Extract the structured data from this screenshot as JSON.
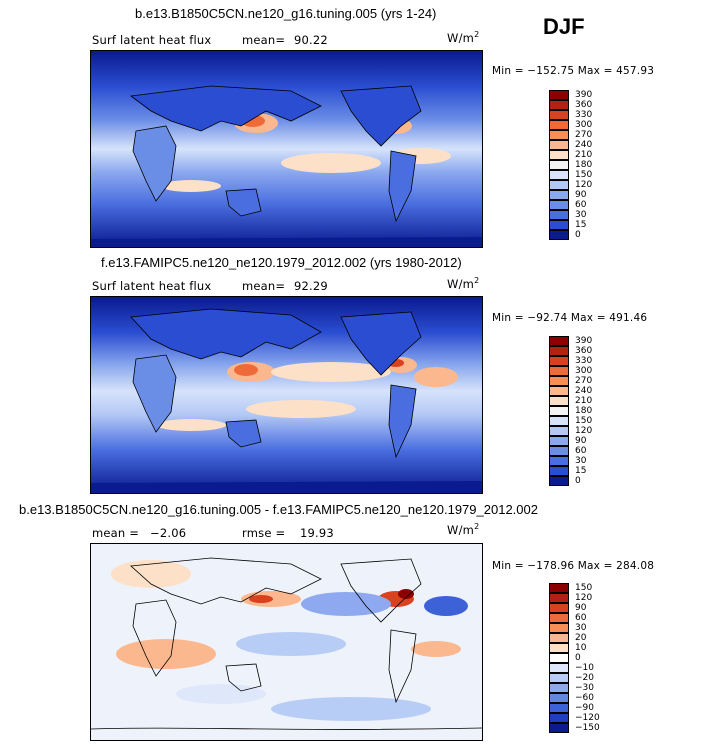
{
  "season": "DJF",
  "panels": [
    {
      "title": "b.e13.B1850C5CN.ne120_g16.tuning.005 (yrs 1-24)",
      "variable": "Surf latent heat flux",
      "stat_label": "mean=",
      "stat_value": "90.22",
      "units": "W/m",
      "units_sup": "2",
      "minmax": "Min = −152.75 Max = 457.93",
      "colorbar_levels": [
        "390",
        "360",
        "330",
        "300",
        "270",
        "240",
        "210",
        "180",
        "150",
        "120",
        "90",
        "60",
        "30",
        "15",
        "0"
      ],
      "colors": [
        "#8b0000",
        "#b22211",
        "#d9421e",
        "#ee6a38",
        "#f68e58",
        "#fbb88e",
        "#fde0c8",
        "#f4f4f4",
        "#d6e3fa",
        "#b3c8f5",
        "#8aa8ee",
        "#6a8de6",
        "#4a6ee0",
        "#2a4dd1",
        "#0a1a8f"
      ]
    },
    {
      "title": "f.e13.FAMIPC5.ne120_ne120.1979_2012.002 (yrs 1980-2012)",
      "variable": "Surf latent heat flux",
      "stat_label": "mean=",
      "stat_value": "92.29",
      "units": "W/m",
      "units_sup": "2",
      "minmax": "Min = −92.74 Max = 491.46",
      "colorbar_levels": [
        "390",
        "360",
        "330",
        "300",
        "270",
        "240",
        "210",
        "180",
        "150",
        "120",
        "90",
        "60",
        "30",
        "15",
        "0"
      ],
      "colors": [
        "#8b0000",
        "#b22211",
        "#d9421e",
        "#ee6a38",
        "#f68e58",
        "#fbb88e",
        "#fde0c8",
        "#f4f4f4",
        "#d6e3fa",
        "#b3c8f5",
        "#8aa8ee",
        "#6a8de6",
        "#4a6ee0",
        "#2a4dd1",
        "#0a1a8f"
      ]
    },
    {
      "title": "b.e13.B1850C5CN.ne120_g16.tuning.005 - f.e13.FAMIPC5.ne120_ne120.1979_2012.002",
      "stat_label": "mean =",
      "stat_value": "−2.06",
      "rmse_label": "rmse =",
      "rmse_value": "19.93",
      "units": "W/m",
      "units_sup": "2",
      "minmax": "Min = −178.96 Max = 284.08",
      "colorbar_levels": [
        "150",
        "120",
        "90",
        "60",
        "30",
        "20",
        "10",
        "0",
        "−10",
        "−20",
        "−30",
        "−60",
        "−90",
        "−120",
        "−150"
      ],
      "colors": [
        "#8b0000",
        "#b22211",
        "#d9421e",
        "#ee6a38",
        "#f68e58",
        "#fbb88e",
        "#fde0c8",
        "#ffffff",
        "#dfe8fb",
        "#b8cdf6",
        "#8ea9ef",
        "#6286e4",
        "#3d61d6",
        "#1f3fbf",
        "#0a1a8f"
      ]
    }
  ],
  "chart_data": {
    "type": "heatmap",
    "title": "DJF",
    "panels": [
      {
        "title": "b.e13.B1850C5CN.ne120_g16.tuning.005 (yrs 1-24)",
        "variable": "Surf latent heat flux",
        "mean": 90.22,
        "min": -152.75,
        "max": 457.93,
        "units": "W/m2",
        "levels": [
          0,
          15,
          30,
          60,
          90,
          120,
          150,
          180,
          210,
          240,
          270,
          300,
          330,
          360,
          390
        ]
      },
      {
        "title": "f.e13.FAMIPC5.ne120_ne120.1979_2012.002 (yrs 1980-2012)",
        "variable": "Surf latent heat flux",
        "mean": 92.29,
        "min": -92.74,
        "max": 491.46,
        "units": "W/m2",
        "levels": [
          0,
          15,
          30,
          60,
          90,
          120,
          150,
          180,
          210,
          240,
          270,
          300,
          330,
          360,
          390
        ]
      },
      {
        "title": "b.e13.B1850C5CN.ne120_g16.tuning.005 - f.e13.FAMIPC5.ne120_ne120.1979_2012.002",
        "mean": -2.06,
        "rmse": 19.93,
        "min": -178.96,
        "max": 284.08,
        "units": "W/m2",
        "levels": [
          -150,
          -120,
          -90,
          -60,
          -30,
          -20,
          -10,
          0,
          10,
          20,
          30,
          60,
          90,
          120,
          150
        ]
      }
    ]
  }
}
